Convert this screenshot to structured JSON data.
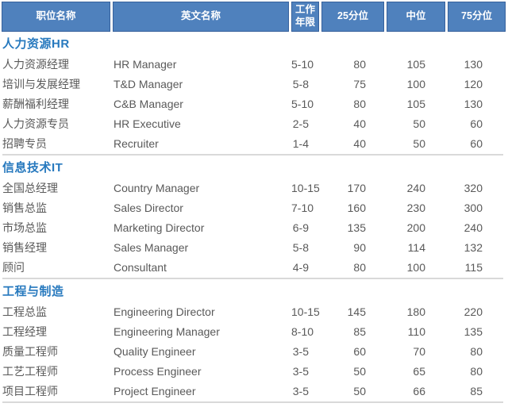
{
  "colors": {
    "header_bg": "#4F81BD",
    "header_border": "#36619C",
    "header_text": "#FFFFFF",
    "section_title": "#2779BE",
    "body_text": "#595959",
    "divider": "#D9D9D9"
  },
  "table": {
    "columns": [
      {
        "key": "position-cn",
        "label": "职位名称"
      },
      {
        "key": "position-en",
        "label": "英文名称"
      },
      {
        "key": "years",
        "label": "工作年限"
      },
      {
        "key": "p25",
        "label": "25分位"
      },
      {
        "key": "median",
        "label": "中位"
      },
      {
        "key": "p75",
        "label": "75分位"
      }
    ],
    "sections": [
      {
        "title": "人力资源HR",
        "rows": [
          [
            "人力资源经理",
            "HR Manager",
            "5-10",
            "80",
            "105",
            "130"
          ],
          [
            "培训与发展经理",
            "T&D Manager",
            "5-8",
            "75",
            "100",
            "120"
          ],
          [
            "薪酬福利经理",
            "C&B Manager",
            "5-10",
            "80",
            "105",
            "130"
          ],
          [
            "人力资源专员",
            "HR Executive",
            "2-5",
            "40",
            "50",
            "60"
          ],
          [
            "招聘专员",
            "Recruiter",
            "1-4",
            "40",
            "50",
            "60"
          ]
        ]
      },
      {
        "title": "信息技术IT",
        "rows": [
          [
            "全国总经理",
            "Country Manager",
            "10-15",
            "170",
            "240",
            "320"
          ],
          [
            "销售总监",
            "Sales Director",
            "7-10",
            "160",
            "230",
            "300"
          ],
          [
            "市场总监",
            "Marketing Director",
            "6-9",
            "135",
            "200",
            "240"
          ],
          [
            "销售经理",
            "Sales Manager",
            "5-8",
            "90",
            "114",
            "132"
          ],
          [
            "顾问",
            "Consultant",
            "4-9",
            "80",
            "100",
            "115"
          ]
        ]
      },
      {
        "title": "工程与制造",
        "rows": [
          [
            "工程总监",
            "Engineering Director",
            "10-15",
            "145",
            "180",
            "220"
          ],
          [
            "工程经理",
            "Engineering Manager",
            "8-10",
            "85",
            "110",
            "135"
          ],
          [
            "质量工程师",
            "Quality Engineer",
            "3-5",
            "60",
            "70",
            "80"
          ],
          [
            "工艺工程师",
            "Process Engineer",
            "3-5",
            "50",
            "65",
            "80"
          ],
          [
            "项目工程师",
            "Project Engineer",
            "3-5",
            "50",
            "66",
            "85"
          ]
        ]
      }
    ]
  }
}
